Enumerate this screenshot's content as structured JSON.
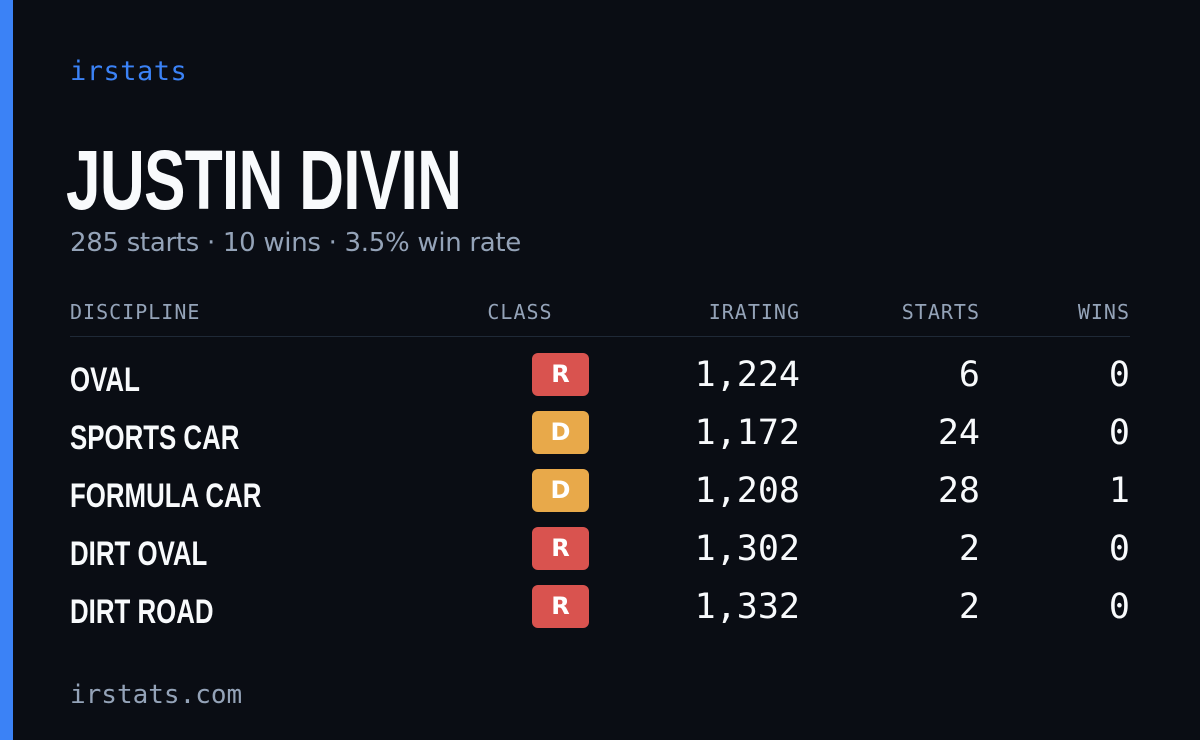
{
  "brand": "irstats",
  "driver": {
    "name": "JUSTIN DIVIN",
    "summary": "285 starts · 10 wins · 3.5% win rate"
  },
  "table": {
    "headers": {
      "discipline": "DISCIPLINE",
      "class": "CLASS",
      "irating": "IRATING",
      "starts": "STARTS",
      "wins": "WINS"
    },
    "rows": [
      {
        "discipline": "OVAL",
        "class": "R",
        "class_color": "#d9534f",
        "irating": "1,224",
        "starts": "6",
        "wins": "0"
      },
      {
        "discipline": "SPORTS CAR",
        "class": "D",
        "class_color": "#e8a94a",
        "irating": "1,172",
        "starts": "24",
        "wins": "0"
      },
      {
        "discipline": "FORMULA CAR",
        "class": "D",
        "class_color": "#e8a94a",
        "irating": "1,208",
        "starts": "28",
        "wins": "1"
      },
      {
        "discipline": "DIRT OVAL",
        "class": "R",
        "class_color": "#d9534f",
        "irating": "1,302",
        "starts": "2",
        "wins": "0"
      },
      {
        "discipline": "DIRT ROAD",
        "class": "R",
        "class_color": "#d9534f",
        "irating": "1,332",
        "starts": "2",
        "wins": "0"
      }
    ]
  },
  "footer": "irstats.com",
  "colors": {
    "accent": "#3b82f6",
    "background": "#0a0d14"
  }
}
